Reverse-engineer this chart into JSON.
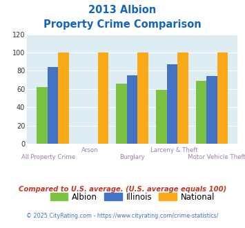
{
  "title_line1": "2013 Albion",
  "title_line2": "Property Crime Comparison",
  "categories": [
    "All Property Crime",
    "Arson",
    "Burglary",
    "Larceny & Theft",
    "Motor Vehicle Theft"
  ],
  "albion": [
    62,
    0,
    66,
    59,
    69
  ],
  "illinois": [
    84,
    0,
    75,
    87,
    74
  ],
  "national": [
    100,
    100,
    100,
    100,
    100
  ],
  "albion_color": "#7bc242",
  "illinois_color": "#4472c4",
  "national_color": "#faa919",
  "title_color": "#1565c0",
  "xlabel_color": "#9b7fb6",
  "bg_color": "#ddedf3",
  "ylim": [
    0,
    120
  ],
  "yticks": [
    0,
    20,
    40,
    60,
    80,
    100,
    120
  ],
  "footnote1": "Compared to U.S. average. (U.S. average equals 100)",
  "footnote2": "© 2025 CityRating.com - https://www.cityrating.com/crime-statistics/",
  "footnote1_color": "#c0392b",
  "footnote2_color": "#4472c4"
}
